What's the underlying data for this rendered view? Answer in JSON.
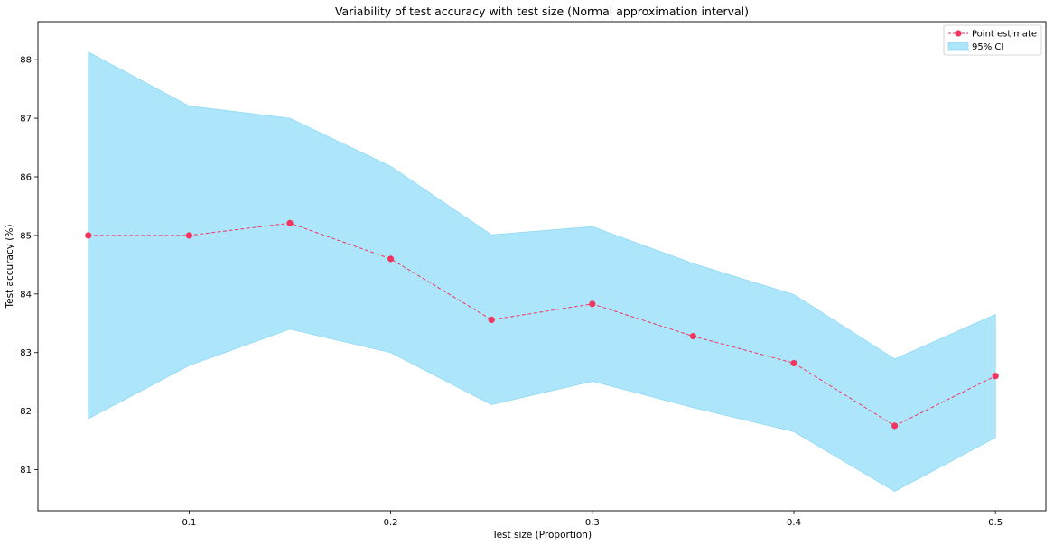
{
  "chart_data": {
    "type": "line",
    "title": "Variability of test accuracy with test size (Normal approximation interval)",
    "xlabel": "Test size (Proportion)",
    "ylabel": "Test accuracy (%)",
    "xlim": [
      0.025,
      0.525
    ],
    "ylim": [
      80.3,
      88.65
    ],
    "xticks": [
      0.1,
      0.2,
      0.3,
      0.4,
      0.5
    ],
    "xtick_labels": [
      "0.1",
      "0.2",
      "0.3",
      "0.4",
      "0.5"
    ],
    "yticks": [
      81,
      82,
      83,
      84,
      85,
      86,
      87,
      88
    ],
    "ytick_labels": [
      "81",
      "82",
      "83",
      "84",
      "85",
      "86",
      "87",
      "88"
    ],
    "grid": false,
    "legend_position": "top-right",
    "x": [
      0.05,
      0.1,
      0.15,
      0.2,
      0.25,
      0.3,
      0.35,
      0.4,
      0.45,
      0.5
    ],
    "series": [
      {
        "name": "Point estimate",
        "kind": "line",
        "style": "dashed with circle markers",
        "color": "#f2365f",
        "values": [
          85.0,
          85.0,
          85.21,
          84.6,
          83.56,
          83.83,
          83.28,
          82.82,
          81.75,
          82.6
        ]
      },
      {
        "name": "95% CI",
        "kind": "band",
        "color": "#ade6fb",
        "edge_color": "#8fd9f5",
        "lower": [
          81.87,
          82.78,
          83.4,
          83.0,
          82.11,
          82.51,
          82.06,
          81.65,
          80.63,
          81.55
        ],
        "upper": [
          88.13,
          87.21,
          87.0,
          86.18,
          85.01,
          85.15,
          84.52,
          83.99,
          82.89,
          83.65
        ]
      }
    ]
  }
}
